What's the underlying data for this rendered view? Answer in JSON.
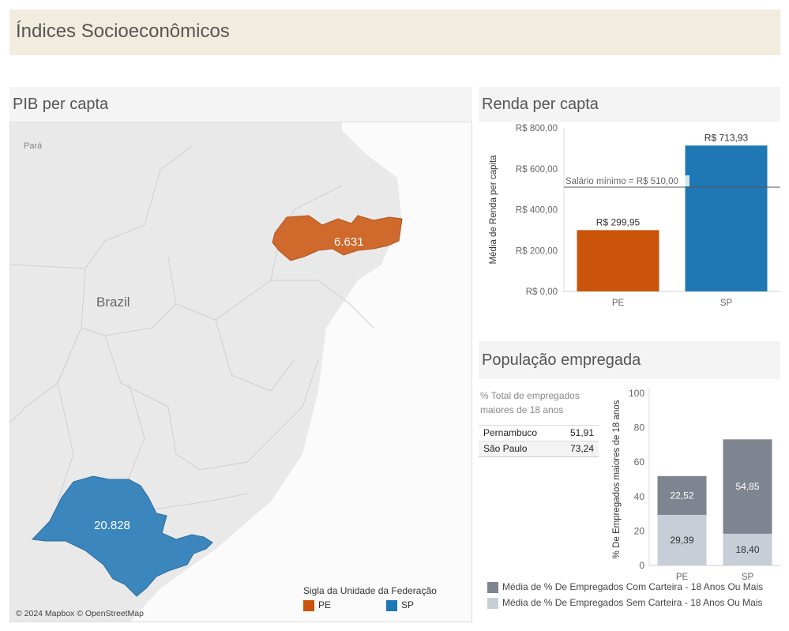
{
  "header": {
    "title": "Índices Socioeconômicos"
  },
  "map": {
    "title": "PIB per capta",
    "country_label": "Brazil",
    "region_label": "Pará",
    "states": [
      {
        "code": "PE",
        "value_label": "6.631",
        "color": "#d0692c"
      },
      {
        "code": "SP",
        "value_label": "20.828",
        "color": "#3b86bd"
      }
    ],
    "legend": {
      "title": "Sigla da Unidade da Federação",
      "items": [
        {
          "label": "PE",
          "color": "#c9540a"
        },
        {
          "label": "SP",
          "color": "#1f77b4"
        }
      ]
    },
    "copyright": "© 2024 Mapbox © OpenStreetMap"
  },
  "renda": {
    "title": "Renda per capta",
    "ylabel": "Média de Renda per capita",
    "reference_label": "Salário mínimo = R$ 510,00"
  },
  "pop": {
    "title": "População empregada",
    "table_header": "% Total de empregados maiores de 18 anos",
    "rows": [
      {
        "name": "Pernambuco",
        "value": "51,91"
      },
      {
        "name": "São Paulo",
        "value": "73,24"
      }
    ],
    "ylabel": "% De Empregados maiores de 18 anos",
    "legend": [
      {
        "label": "Média de % De Empregados Com Carteira - 18 Anos Ou Mais",
        "color": "#7f8590"
      },
      {
        "label": "Média de % De Empregados Sem Carteira - 18 Anos Ou Mais",
        "color": "#c7ced8"
      }
    ]
  },
  "chart_data": [
    {
      "type": "bar",
      "title": "Renda per capta",
      "ylabel": "Média de Renda per capita",
      "categories": [
        "PE",
        "SP"
      ],
      "values": [
        299.95,
        713.93
      ],
      "value_labels": [
        "R$ 299,95",
        "R$ 713,93"
      ],
      "colors": [
        "#c9540a",
        "#1f77b4"
      ],
      "ylim": [
        0,
        800
      ],
      "yticks": [
        0,
        200,
        400,
        600,
        800
      ],
      "ytick_labels": [
        "R$ 0,00",
        "R$ 200,00",
        "R$ 400,00",
        "R$ 600,00",
        "R$ 800,00"
      ],
      "reference_line": {
        "value": 510,
        "label": "Salário mínimo = R$ 510,00"
      }
    },
    {
      "type": "bar",
      "stacked": true,
      "ylabel": "% De Empregados maiores de 18 anos",
      "categories": [
        "PE",
        "SP"
      ],
      "series": [
        {
          "name": "Média de % De Empregados Sem Carteira - 18 Anos Ou Mais",
          "values": [
            29.39,
            18.4
          ],
          "value_labels": [
            "29,39",
            "18,40"
          ],
          "color": "#c7ced8"
        },
        {
          "name": "Média de % De Empregados Com Carteira - 18 Anos Ou Mais",
          "values": [
            22.52,
            54.85
          ],
          "value_labels": [
            "22,52",
            "54,85"
          ],
          "color": "#7f8590"
        }
      ],
      "ylim": [
        0,
        100
      ],
      "yticks": [
        0,
        20,
        40,
        60,
        80,
        100
      ]
    }
  ]
}
